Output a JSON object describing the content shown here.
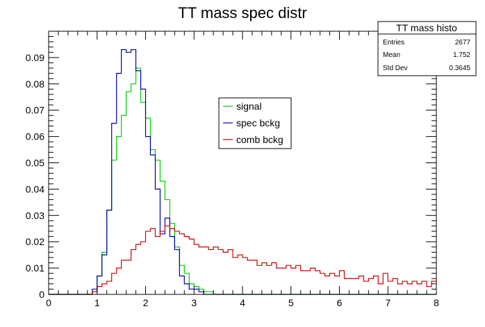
{
  "chart_data": {
    "type": "line",
    "title": "TT mass spec distr",
    "xlabel": "",
    "ylabel": "",
    "xlim": [
      0,
      8
    ],
    "ylim": [
      0,
      0.1
    ],
    "x_ticks": [
      "0",
      "1",
      "2",
      "3",
      "4",
      "5",
      "6",
      "7",
      "8"
    ],
    "y_ticks": [
      "0",
      "0.01",
      "0.02",
      "0.03",
      "0.04",
      "0.05",
      "0.06",
      "0.07",
      "0.08",
      "0.09"
    ],
    "bin_width": 0.1,
    "stats_box": {
      "title": "TT mass histo",
      "rows": [
        {
          "label": "Entries",
          "value": "2677"
        },
        {
          "label": "Mean",
          "value": "1.752"
        },
        {
          "label": "Std Dev",
          "value": "0.3645"
        }
      ]
    },
    "legend_position": "upper-middle",
    "series": [
      {
        "name": "signal",
        "color": "#00cc00",
        "values": [
          0,
          0,
          0,
          0,
          0,
          0,
          0,
          0,
          0,
          0.001,
          0.007,
          0.016,
          0.032,
          0.051,
          0.06,
          0.068,
          0.077,
          0.08,
          0.086,
          0.073,
          0.067,
          0.055,
          0.051,
          0.043,
          0.036,
          0.027,
          0.018,
          0.011,
          0.008,
          0.004,
          0.003,
          0.002,
          0.001,
          0.001,
          0,
          0,
          0,
          0,
          0,
          0,
          0,
          0,
          0,
          0,
          0,
          0,
          0,
          0,
          0,
          0,
          0,
          0,
          0,
          0,
          0,
          0,
          0,
          0,
          0,
          0,
          0,
          0,
          0,
          0,
          0,
          0,
          0,
          0,
          0,
          0,
          0,
          0,
          0,
          0,
          0,
          0,
          0,
          0,
          0,
          0
        ]
      },
      {
        "name": "spec bckg",
        "color": "#0000aa",
        "values": [
          0,
          0,
          0,
          0,
          0,
          0,
          0,
          0,
          0,
          0.002,
          0.007,
          0.015,
          0.032,
          0.065,
          0.084,
          0.093,
          0.092,
          0.093,
          0.085,
          0.078,
          0.06,
          0.053,
          0.04,
          0.023,
          0.029,
          0.022,
          0.017,
          0.007,
          0.004,
          0.002,
          0.002,
          0.001,
          0,
          0,
          0,
          0,
          0,
          0,
          0,
          0,
          0,
          0,
          0,
          0,
          0,
          0,
          0,
          0,
          0,
          0,
          0,
          0,
          0,
          0,
          0,
          0,
          0,
          0,
          0,
          0,
          0,
          0,
          0,
          0,
          0,
          0,
          0,
          0,
          0,
          0,
          0,
          0,
          0,
          0,
          0,
          0,
          0,
          0,
          0,
          0
        ]
      },
      {
        "name": "comb bckg",
        "color": "#cc0000",
        "values": [
          0,
          0,
          0,
          0,
          0,
          0,
          0,
          0,
          0,
          0.001,
          0.003,
          0.004,
          0.005,
          0.008,
          0.01,
          0.013,
          0.013,
          0.017,
          0.019,
          0.02,
          0.024,
          0.025,
          0.022,
          0.024,
          0.026,
          0.025,
          0.024,
          0.023,
          0.022,
          0.021,
          0.019,
          0.018,
          0.018,
          0.017,
          0.018,
          0.017,
          0.016,
          0.017,
          0.014,
          0.015,
          0.014,
          0.013,
          0.013,
          0.011,
          0.012,
          0.011,
          0.012,
          0.01,
          0.01,
          0.011,
          0.01,
          0.011,
          0.009,
          0.009,
          0.01,
          0.009,
          0.008,
          0.007,
          0.008,
          0.007,
          0.009,
          0.006,
          0.006,
          0.006,
          0.007,
          0.005,
          0.006,
          0.007,
          0.004,
          0.008,
          0.005,
          0.006,
          0.004,
          0.005,
          0.004,
          0.005,
          0.004,
          0.005,
          0.003,
          0.005
        ]
      }
    ]
  }
}
